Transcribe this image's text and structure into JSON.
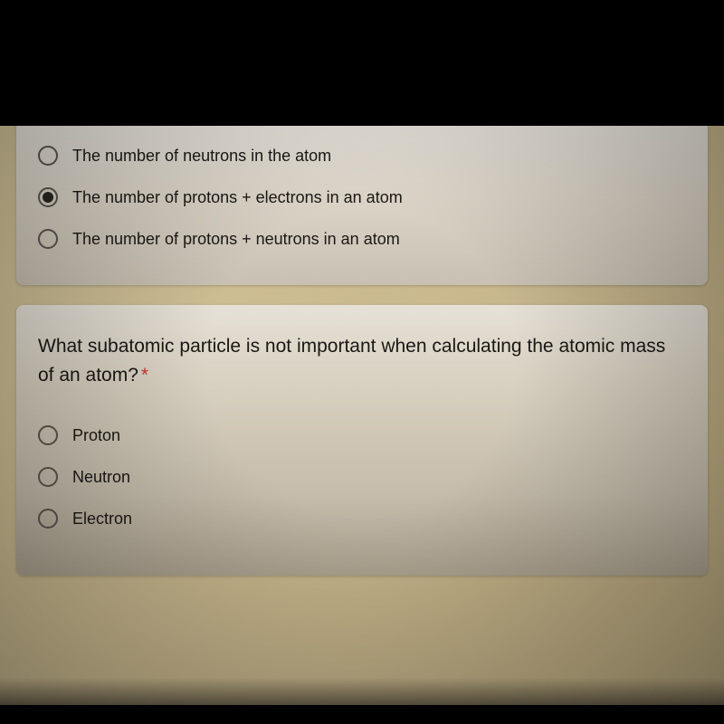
{
  "colors": {
    "black_bar": "#000000",
    "form_bg": "#c9b88e",
    "card_bg": "#dcd5c8",
    "text": "#1a1815",
    "radio_border": "#5a5650",
    "radio_fill": "#2a2824",
    "required": "#c5372c"
  },
  "question1": {
    "options": [
      {
        "label": "The number of neutrons in the atom",
        "selected": false
      },
      {
        "label": "The number of protons + electrons in an atom",
        "selected": true
      },
      {
        "label": "The number of protons + neutrons in an atom",
        "selected": false
      }
    ]
  },
  "question2": {
    "prompt": "What subatomic particle is not important when calculating the atomic mass of an atom?",
    "required_marker": "*",
    "options": [
      {
        "label": "Proton",
        "selected": false
      },
      {
        "label": "Neutron",
        "selected": false
      },
      {
        "label": "Electron",
        "selected": false
      }
    ]
  }
}
